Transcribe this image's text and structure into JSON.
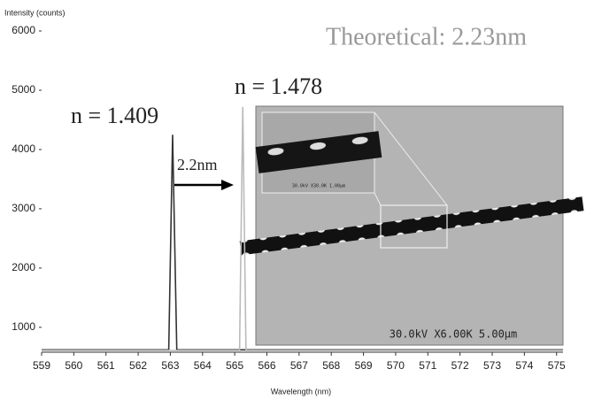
{
  "chart_data": {
    "type": "line",
    "y_label": "Intensity (counts)",
    "x_label": "Wavelength (nm)",
    "xlim": [
      559,
      575.2
    ],
    "ylim": [
      580,
      6000
    ],
    "xticks": [
      559,
      560,
      561,
      562,
      563,
      564,
      565,
      566,
      567,
      568,
      569,
      570,
      571,
      572,
      573,
      574,
      575
    ],
    "yticks": [
      1000,
      2000,
      3000,
      4000,
      5000,
      6000
    ],
    "series": [
      {
        "color": "#333333",
        "x": [
          559,
          562.95,
          563.07,
          563.2,
          575.2
        ],
        "values": [
          620,
          620,
          4250,
          620,
          620
        ]
      },
      {
        "color": "#bbbbbb",
        "x": [
          559,
          565.15,
          565.25,
          565.35,
          575.2
        ],
        "values": [
          610,
          610,
          4720,
          610,
          610
        ]
      }
    ],
    "annotations": [
      "Theoretical: 2.23nm",
      "n = 1.478",
      "n = 1.409",
      "2.2nm"
    ],
    "image_labels": [
      "30.0kV X6.00K 5.00µm",
      "30.0kV X30.0K 1.00µm"
    ]
  }
}
